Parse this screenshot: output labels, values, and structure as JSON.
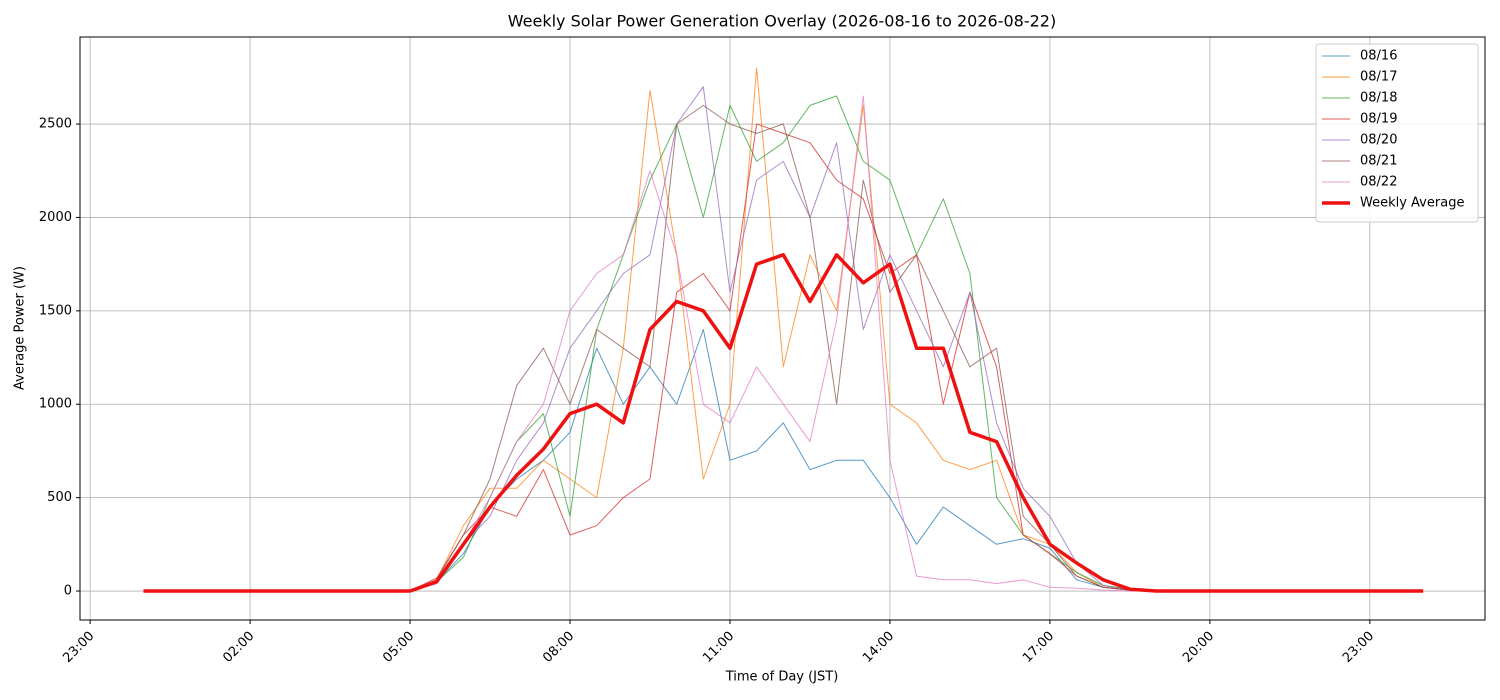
{
  "chart_data": {
    "type": "line",
    "title": "Weekly Solar Power Generation Overlay (2026-08-16 to 2026-08-22)",
    "x_label": "Time of Day (JST)",
    "y_label": "Average Power (W)",
    "x": [
      0,
      0.5,
      1,
      1.5,
      2,
      2.5,
      3,
      3.5,
      4,
      4.5,
      5,
      5.5,
      6,
      6.5,
      7,
      7.5,
      8,
      8.5,
      9,
      9.5,
      10,
      10.5,
      11,
      11.5,
      12,
      12.5,
      13,
      13.5,
      14,
      14.5,
      15,
      15.5,
      16,
      16.5,
      17,
      17.5,
      18,
      18.5,
      19,
      19.5,
      20,
      20.5,
      21,
      21.5,
      22,
      22.5,
      23,
      23.5,
      24
    ],
    "series": [
      {
        "name": "08/16",
        "color": "#1f77b4",
        "linewidth": 1,
        "values": [
          0,
          0,
          0,
          0,
          0,
          0,
          0,
          0,
          0,
          0,
          0,
          50,
          200,
          450,
          600,
          700,
          850,
          1300,
          1000,
          1200,
          1000,
          1400,
          700,
          750,
          900,
          650,
          700,
          700,
          500,
          250,
          450,
          350,
          250,
          280,
          230,
          60,
          20,
          5,
          0,
          0,
          0,
          0,
          0,
          0,
          0,
          0,
          0,
          0,
          0
        ]
      },
      {
        "name": "08/17",
        "color": "#ff7f0e",
        "linewidth": 1,
        "values": [
          0,
          0,
          0,
          0,
          0,
          0,
          0,
          0,
          0,
          0,
          0,
          60,
          350,
          550,
          550,
          700,
          600,
          500,
          1300,
          2680,
          1800,
          600,
          1000,
          2800,
          1200,
          1800,
          1500,
          2600,
          1000,
          900,
          700,
          650,
          700,
          300,
          250,
          100,
          20,
          5,
          0,
          0,
          0,
          0,
          0,
          0,
          0,
          0,
          0,
          0,
          0
        ]
      },
      {
        "name": "08/18",
        "color": "#2ca02c",
        "linewidth": 1,
        "values": [
          0,
          0,
          0,
          0,
          0,
          0,
          0,
          0,
          0,
          0,
          0,
          50,
          180,
          500,
          800,
          950,
          400,
          1400,
          1800,
          2200,
          2500,
          2000,
          2600,
          2300,
          2400,
          2600,
          2650,
          2300,
          2200,
          1800,
          2100,
          1700,
          500,
          300,
          200,
          100,
          30,
          10,
          0,
          0,
          0,
          0,
          0,
          0,
          0,
          0,
          0,
          0,
          0
        ]
      },
      {
        "name": "08/19",
        "color": "#d62728",
        "linewidth": 1,
        "values": [
          0,
          0,
          0,
          0,
          0,
          0,
          0,
          0,
          0,
          0,
          0,
          70,
          300,
          450,
          400,
          650,
          300,
          350,
          500,
          600,
          1600,
          1700,
          1500,
          2500,
          2450,
          2400,
          2200,
          2100,
          1700,
          1800,
          1000,
          1600,
          1200,
          300,
          200,
          80,
          20,
          5,
          0,
          0,
          0,
          0,
          0,
          0,
          0,
          0,
          0,
          0,
          0
        ]
      },
      {
        "name": "08/20",
        "color": "#9467bd",
        "linewidth": 1,
        "values": [
          0,
          0,
          0,
          0,
          0,
          0,
          0,
          0,
          0,
          0,
          0,
          40,
          250,
          400,
          700,
          900,
          1300,
          1500,
          1700,
          1800,
          2500,
          2700,
          1600,
          2200,
          2300,
          2000,
          2400,
          1400,
          1800,
          1500,
          1200,
          1600,
          900,
          550,
          400,
          150,
          30,
          5,
          0,
          0,
          0,
          0,
          0,
          0,
          0,
          0,
          0,
          0,
          0
        ]
      },
      {
        "name": "08/21",
        "color": "#8c564b",
        "linewidth": 1,
        "values": [
          0,
          0,
          0,
          0,
          0,
          0,
          0,
          0,
          0,
          0,
          0,
          60,
          300,
          600,
          1100,
          1300,
          1000,
          1400,
          1300,
          1200,
          2500,
          2600,
          2500,
          2450,
          2500,
          2000,
          1000,
          2200,
          1600,
          1800,
          1500,
          1200,
          1300,
          400,
          250,
          80,
          20,
          5,
          0,
          0,
          0,
          0,
          0,
          0,
          0,
          0,
          0,
          0,
          0
        ]
      },
      {
        "name": "08/22",
        "color": "#e377c2",
        "linewidth": 1,
        "values": [
          0,
          0,
          0,
          0,
          0,
          0,
          0,
          0,
          0,
          0,
          0,
          50,
          250,
          500,
          800,
          1000,
          1500,
          1700,
          1800,
          2250,
          1800,
          1000,
          900,
          1200,
          1000,
          800,
          1450,
          2650,
          700,
          80,
          60,
          60,
          40,
          60,
          20,
          15,
          5,
          0,
          0,
          0,
          0,
          0,
          0,
          0,
          0,
          0,
          0,
          0,
          0
        ]
      },
      {
        "name": "Weekly Average",
        "color": "#ee1111",
        "linewidth": 3.5,
        "values": [
          0,
          0,
          0,
          0,
          0,
          0,
          0,
          0,
          0,
          0,
          0,
          50,
          250,
          450,
          620,
          760,
          950,
          1000,
          900,
          1400,
          1550,
          1500,
          1300,
          1750,
          1800,
          1550,
          1800,
          1650,
          1750,
          1300,
          1300,
          850,
          800,
          500,
          250,
          150,
          60,
          10,
          0,
          0,
          0,
          0,
          0,
          0,
          0,
          0,
          0,
          0,
          0
        ]
      }
    ],
    "xlim": [
      -1.19,
      25.16
    ],
    "ylim": [
      -155,
      2966
    ],
    "xticks": [
      {
        "value": -1,
        "label": "23:00"
      },
      {
        "value": 2,
        "label": "02:00"
      },
      {
        "value": 5,
        "label": "05:00"
      },
      {
        "value": 8,
        "label": "08:00"
      },
      {
        "value": 11,
        "label": "11:00"
      },
      {
        "value": 14,
        "label": "14:00"
      },
      {
        "value": 17,
        "label": "17:00"
      },
      {
        "value": 20,
        "label": "20:00"
      },
      {
        "value": 23,
        "label": "23:00"
      }
    ],
    "yticks": [
      0,
      500,
      1000,
      1500,
      2000,
      2500
    ],
    "grid": true,
    "legend": "upper-right"
  }
}
